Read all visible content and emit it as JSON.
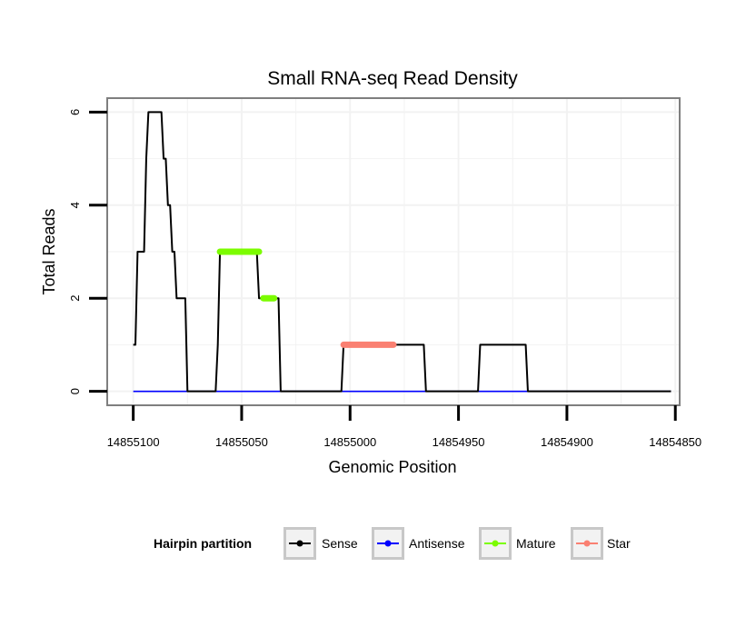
{
  "chart_data": {
    "type": "line",
    "title": "Small RNA-seq Read Density",
    "xlabel": "Genomic Position",
    "ylabel": "Total Reads",
    "x_reversed": true,
    "xlim": [
      14855112,
      14854848
    ],
    "ylim": [
      -0.3,
      6.3
    ],
    "xticks": [
      14855100,
      14855050,
      14855000,
      14854950,
      14854900,
      14854850
    ],
    "xtick_labels": [
      "14855100",
      "14855050",
      "14855000",
      "14854950",
      "14854900",
      "14854850"
    ],
    "yticks": [
      0,
      2,
      4,
      6
    ],
    "ytick_labels": [
      "0",
      "2",
      "4",
      "6"
    ],
    "grid": true,
    "legend": {
      "title": "Hairpin partition",
      "position": "bottom",
      "entries": [
        {
          "name": "Sense",
          "color": "#000000"
        },
        {
          "name": "Antisense",
          "color": "#0000ff"
        },
        {
          "name": "Mature",
          "color": "#7cfc00"
        },
        {
          "name": "Star",
          "color": "#fa8072"
        }
      ]
    },
    "series": [
      {
        "name": "Sense",
        "color": "#000000",
        "x": [
          14855100,
          14855099,
          14855098,
          14855095,
          14855094,
          14855093,
          14855092,
          14855088,
          14855087,
          14855086,
          14855085,
          14855084,
          14855083,
          14855082,
          14855081,
          14855080,
          14855079,
          14855078,
          14855076,
          14855075,
          14855074,
          14855073,
          14855062,
          14855061,
          14855060,
          14855055,
          14855050,
          14855045,
          14855043,
          14855042,
          14855035,
          14855033,
          14855032,
          14855030,
          14855025,
          14855020,
          14855015,
          14855010,
          14855004,
          14855003,
          14854990,
          14854980,
          14854972,
          14854970,
          14854966,
          14854965,
          14854960,
          14854950,
          14854941,
          14854940,
          14854930,
          14854919,
          14854918,
          14854900,
          14854880,
          14854860,
          14854852
        ],
        "values": [
          1,
          1,
          3,
          3,
          5,
          6,
          6,
          6,
          6,
          5,
          5,
          4,
          4,
          3,
          3,
          2,
          2,
          2,
          2,
          0,
          0,
          0,
          0,
          1,
          3,
          3,
          3,
          3,
          3,
          2,
          2,
          2,
          0,
          0,
          0,
          0,
          0,
          0,
          0,
          1,
          1,
          1,
          1,
          1,
          1,
          0,
          0,
          0,
          0,
          1,
          1,
          1,
          0,
          0,
          0,
          0,
          0
        ]
      },
      {
        "name": "Antisense",
        "color": "#0000ff",
        "x": [
          14855100,
          14854852
        ],
        "values": [
          0,
          0
        ]
      },
      {
        "name": "Mature",
        "color": "#7cfc00",
        "segments": [
          {
            "x": [
              14855060,
              14855042
            ],
            "values": [
              3,
              3
            ]
          },
          {
            "x": [
              14855040,
              14855035
            ],
            "values": [
              2,
              2
            ]
          }
        ]
      },
      {
        "name": "Star",
        "color": "#fa8072",
        "segments": [
          {
            "x": [
              14855003,
              14854980
            ],
            "values": [
              1,
              1
            ]
          }
        ]
      }
    ]
  }
}
